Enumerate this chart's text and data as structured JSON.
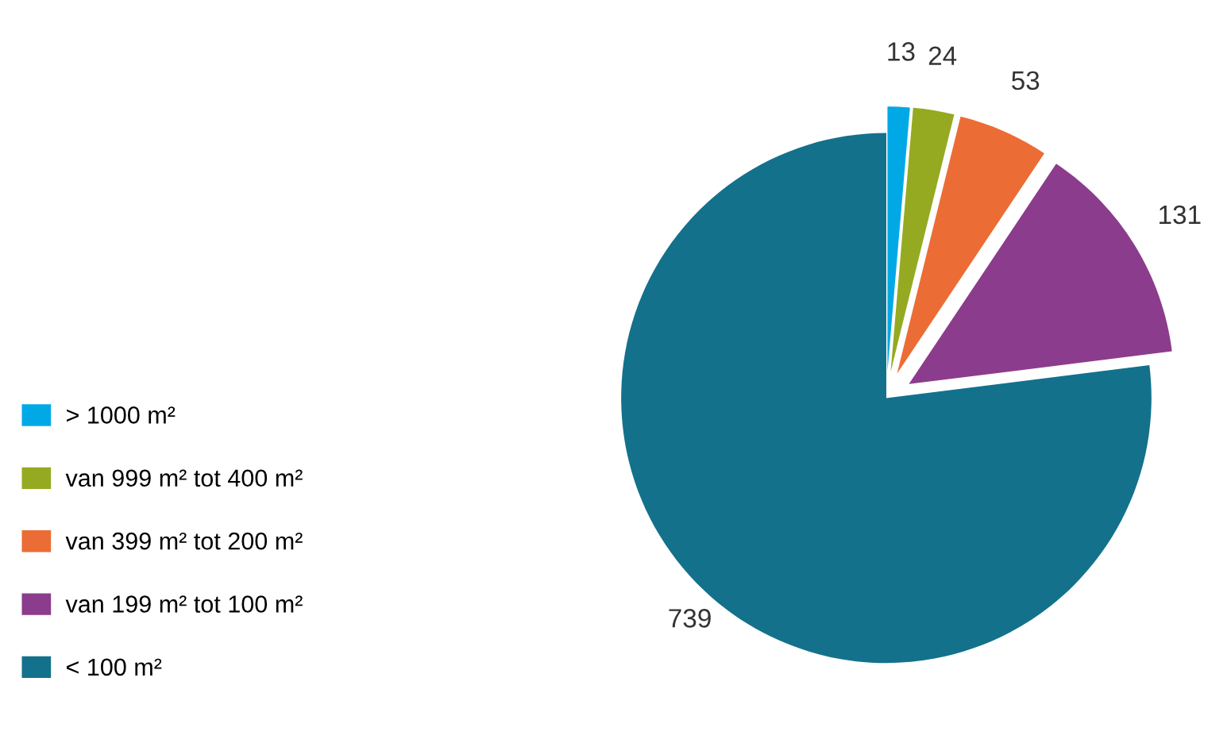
{
  "chart_data": {
    "type": "pie",
    "categories": [
      "> 1000 m²",
      "van 999 m² tot 400 m²",
      "van 399 m² tot 200 m²",
      "van 199 m² tot 100 m²",
      "< 100 m²"
    ],
    "values": [
      13,
      24,
      53,
      131,
      739
    ],
    "colors": [
      "#00a9e6",
      "#95aa20",
      "#ec6c35",
      "#8c3c8c",
      "#13718c"
    ],
    "data_labels": true,
    "legend": "left"
  }
}
